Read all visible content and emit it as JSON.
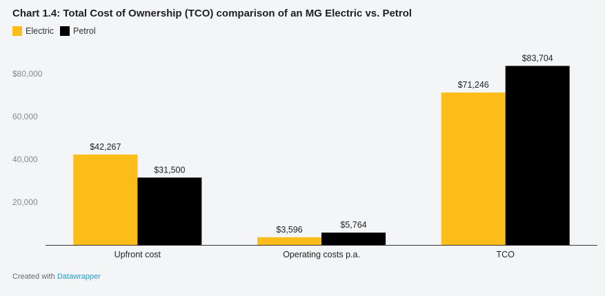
{
  "chart_data": {
    "type": "bar",
    "title": "Chart 1.4: Total Cost of Ownership (TCO) comparison of an MG Electric vs. Petrol",
    "categories": [
      "Upfront cost",
      "Operating costs p.a.",
      "TCO"
    ],
    "series": [
      {
        "name": "Electric",
        "values": [
          42267,
          3596,
          71246
        ],
        "labels": [
          "$42,267",
          "$3,596",
          "$71,246"
        ],
        "color": "#fcbc19"
      },
      {
        "name": "Petrol",
        "values": [
          31500,
          5764,
          83704
        ],
        "labels": [
          "$31,500",
          "$5,764",
          "$83,704"
        ],
        "color": "#000000"
      }
    ],
    "yticks": [
      {
        "value": 20000,
        "label": "20,000"
      },
      {
        "value": 40000,
        "label": "40,000"
      },
      {
        "value": 60000,
        "label": "60,000"
      },
      {
        "value": 80000,
        "label": "$80,000"
      }
    ],
    "ylim": [
      0,
      85000
    ],
    "xlabel": "",
    "ylabel": "",
    "grid": false,
    "legend_position": "top-left"
  },
  "footer": {
    "prefix": "Created with",
    "link": "Datawrapper"
  }
}
